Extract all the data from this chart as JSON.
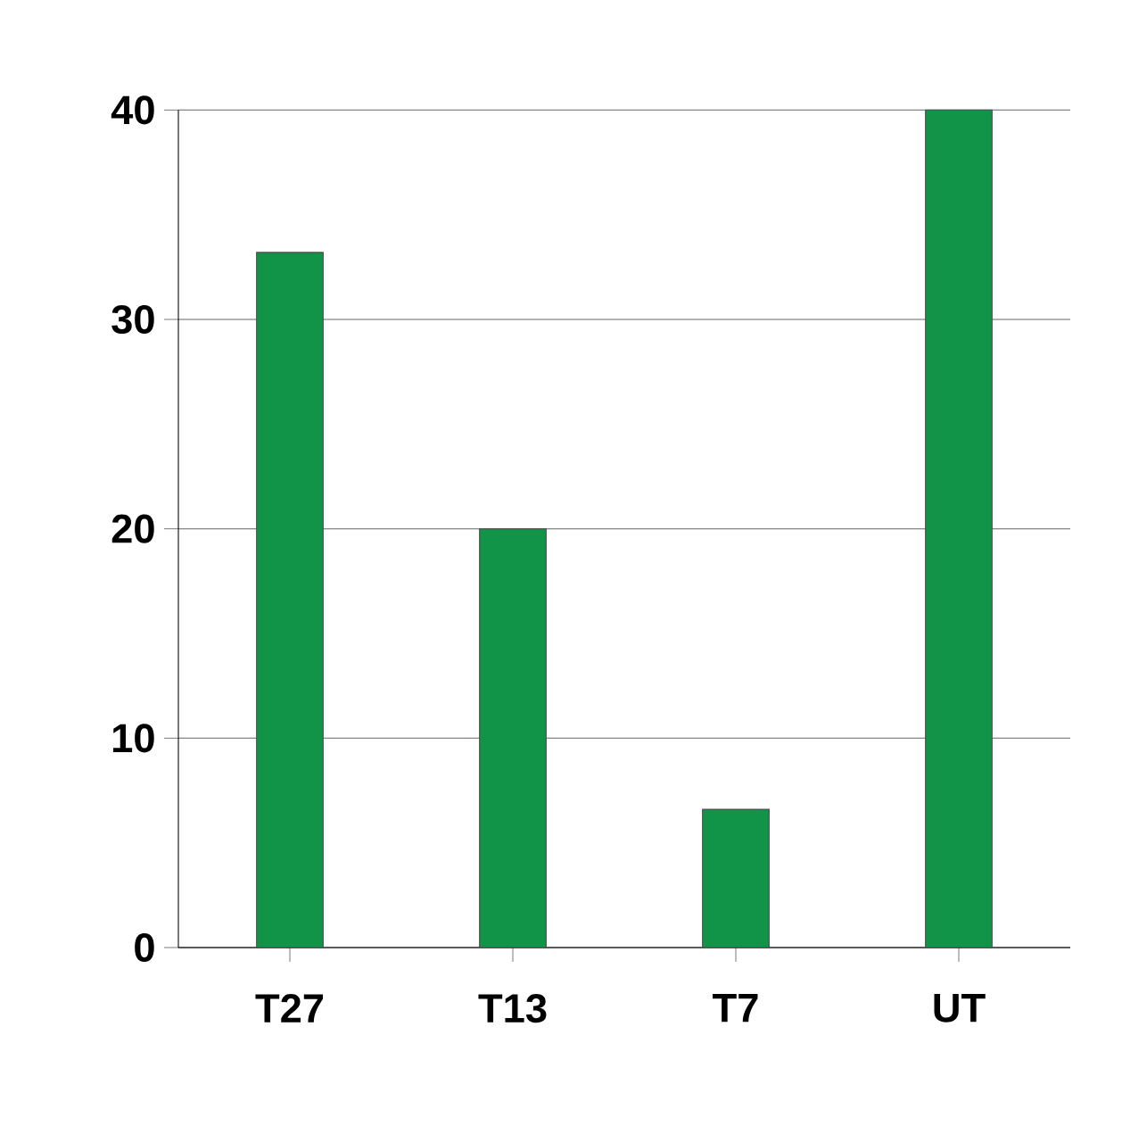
{
  "chart_data": {
    "type": "bar",
    "categories": [
      "T27",
      "T13",
      "T7",
      "UT"
    ],
    "values": [
      33.2,
      20,
      6.6,
      40
    ],
    "color": "#119447",
    "ylim": [
      0,
      40
    ],
    "yticks": [
      0,
      10,
      20,
      30,
      40
    ],
    "grid": "y"
  }
}
